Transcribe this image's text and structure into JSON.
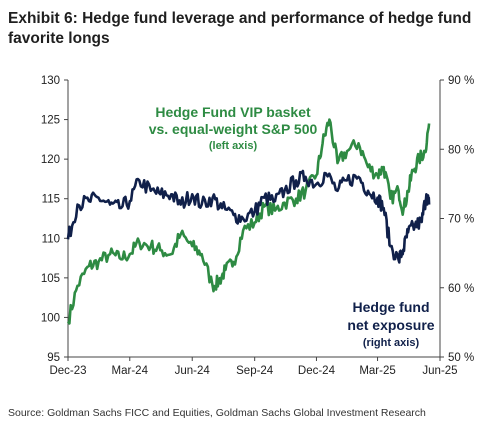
{
  "title_line1": "Exhibit 6: Hedge fund leverage and performance of hedge fund",
  "title_line2": "favorite longs",
  "source": "Source: Goldman Sachs FICC and Equities, Goldman Sachs Global Investment Research",
  "colors": {
    "green": "#2e8b43",
    "navy": "#10204a"
  },
  "chart_data": {
    "type": "line",
    "x_ticks": [
      "Dec-23",
      "Mar-24",
      "Jun-24",
      "Sep-24",
      "Dec-24",
      "Mar-25",
      "Jun-25"
    ],
    "left_axis": {
      "ylim": [
        95,
        130
      ],
      "ticks": [
        "95",
        "100",
        "105",
        "110",
        "115",
        "120",
        "125",
        "130"
      ]
    },
    "right_axis": {
      "ylim": [
        50,
        90
      ],
      "ticks": [
        "50 %",
        "60 %",
        "70 %",
        "80 %",
        "90 %"
      ]
    },
    "annotations": {
      "green_line1": "Hedge Fund VIP basket",
      "green_line2": "vs. equal-weight S&P 500",
      "green_line3": "(left axis)",
      "navy_line1": "Hedge fund",
      "navy_line2": "net exposure",
      "navy_line3": "(right axis)"
    },
    "series": [
      {
        "axis": "left",
        "color": "#2e8b43",
        "x": [
          "2023-12-01",
          "2023-12-15",
          "2024-01-01",
          "2024-01-15",
          "2024-02-01",
          "2024-02-15",
          "2024-03-01",
          "2024-03-15",
          "2024-04-01",
          "2024-04-15",
          "2024-05-01",
          "2024-05-15",
          "2024-06-01",
          "2024-06-15",
          "2024-07-01",
          "2024-07-10",
          "2024-07-20",
          "2024-08-01",
          "2024-08-15",
          "2024-09-01",
          "2024-09-15",
          "2024-10-01",
          "2024-10-15",
          "2024-11-01",
          "2024-11-15",
          "2024-12-01",
          "2024-12-10",
          "2024-12-20",
          "2025-01-01",
          "2025-01-15",
          "2025-02-01",
          "2025-02-15",
          "2025-03-01",
          "2025-03-10",
          "2025-03-20",
          "2025-04-01",
          "2025-04-08",
          "2025-04-15",
          "2025-04-22",
          "2025-05-01",
          "2025-05-10",
          "2025-05-16"
        ],
        "values": [
          99.5,
          104,
          106.5,
          107,
          108,
          107.5,
          108,
          109.5,
          109,
          108.5,
          108,
          110.5,
          109,
          108,
          104,
          104.5,
          106,
          107,
          111,
          112,
          114,
          113.5,
          114.5,
          115,
          116,
          118,
          122,
          125,
          119.5,
          121,
          122,
          119,
          118,
          119,
          115,
          116,
          113.5,
          116,
          118.5,
          120,
          121,
          124.5
        ]
      },
      {
        "axis": "right",
        "color": "#10204a",
        "x": [
          "2023-12-01",
          "2023-12-15",
          "2024-01-01",
          "2024-01-15",
          "2024-02-01",
          "2024-02-15",
          "2024-03-01",
          "2024-03-15",
          "2024-04-01",
          "2024-04-15",
          "2024-05-01",
          "2024-05-15",
          "2024-06-01",
          "2024-06-15",
          "2024-07-01",
          "2024-07-15",
          "2024-08-01",
          "2024-08-15",
          "2024-09-01",
          "2024-09-15",
          "2024-10-01",
          "2024-10-15",
          "2024-11-01",
          "2024-11-15",
          "2024-12-01",
          "2024-12-15",
          "2025-01-01",
          "2025-01-15",
          "2025-02-01",
          "2025-02-15",
          "2025-03-01",
          "2025-03-10",
          "2025-03-20",
          "2025-04-01",
          "2025-04-08",
          "2025-04-15",
          "2025-04-25",
          "2025-05-05",
          "2025-05-12",
          "2025-05-16"
        ],
        "values": [
          67,
          72,
          72.5,
          73,
          72,
          71.5,
          72.5,
          75.5,
          74,
          73.5,
          73.5,
          72,
          73.5,
          72,
          73,
          71.5,
          70.5,
          70,
          71,
          73,
          72.5,
          74,
          75.5,
          76,
          75,
          76.5,
          74,
          75.5,
          76,
          74,
          73,
          71.5,
          66,
          64,
          65.5,
          68,
          69,
          69.5,
          73.5,
          72
        ]
      }
    ]
  }
}
